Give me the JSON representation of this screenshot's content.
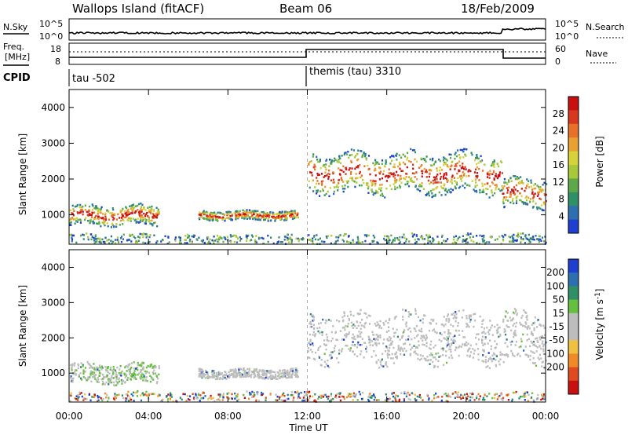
{
  "header": {
    "station": "Wallops Island (fitACF)",
    "beam": "Beam 06",
    "date": "18/Feb/2009"
  },
  "noise_panel": {
    "left_label": "N.Sky",
    "left_ticks": [
      "10^5",
      "10^0"
    ],
    "right_label": "N.Search",
    "right_ticks": [
      "10^5",
      "10^0"
    ]
  },
  "freq_panel": {
    "left_label_1": "Freq.",
    "left_label_2": "[MHz]",
    "left_ticks": [
      "18",
      "8"
    ],
    "right_label": "Nave",
    "right_ticks": [
      "60",
      "0"
    ]
  },
  "cpid": {
    "label": "CPID",
    "modes": [
      "tau -502",
      "themis (tau) 3310"
    ]
  },
  "colors": {
    "power_scale": [
      "#1f3fd0",
      "#2e6fb0",
      "#2f8f66",
      "#5fa84a",
      "#a8c83a",
      "#d8d23a",
      "#e8a030",
      "#e87028",
      "#d83820",
      "#c81010"
    ],
    "velocity_scale": [
      "#1f3fd0",
      "#2e6fb0",
      "#2f8f66",
      "#66c040",
      "#bdbdbd",
      "#bdbdbd",
      "#f0c040",
      "#f08a28",
      "#e04a20",
      "#c81010"
    ],
    "ground_scatter": "#bdbdbd"
  },
  "chart_data": [
    {
      "type": "heatmap",
      "title": "",
      "ylabel": "Slant Range [km]",
      "xlabel": "",
      "xlim": [
        "00:00",
        "24:00"
      ],
      "ylim": [
        180,
        4500
      ],
      "yticks": [
        1000,
        2000,
        3000,
        4000
      ],
      "colorbar": {
        "label": "Power [dB]",
        "range": [
          0,
          32
        ],
        "ticks": [
          4,
          8,
          12,
          16,
          20,
          24,
          28
        ]
      },
      "echo_regions": [
        {
          "t_start": 0.0,
          "t_end": 4.5,
          "range_low": 700,
          "range_high": 1250,
          "level": "strong"
        },
        {
          "t_start": 6.5,
          "t_end": 11.5,
          "range_low": 850,
          "range_high": 1100,
          "level": "moderate"
        },
        {
          "t_start": 12.0,
          "t_end": 21.8,
          "range_low": 1600,
          "range_high": 2700,
          "level": "strong"
        },
        {
          "t_start": 21.8,
          "t_end": 24.0,
          "range_low": 1200,
          "range_high": 2000,
          "level": "strong"
        },
        {
          "t_start": 0.0,
          "t_end": 24.0,
          "range_low": 180,
          "range_high": 450,
          "level": "near-range"
        }
      ]
    },
    {
      "type": "heatmap",
      "title": "",
      "ylabel": "Slant Range [km]",
      "xlabel": "Time UT",
      "xlim": [
        "00:00",
        "24:00"
      ],
      "ylim": [
        180,
        4500
      ],
      "yticks": [
        1000,
        2000,
        3000,
        4000
      ],
      "xticks": [
        "00:00",
        "04:00",
        "08:00",
        "12:00",
        "16:00",
        "20:00",
        "00:00"
      ],
      "colorbar": {
        "label": "Velocity [m s^-1]",
        "bins": [
          "200",
          "100",
          "50",
          "15",
          "-15",
          "-50",
          "-100",
          "-200"
        ]
      },
      "echo_regions": [
        {
          "t_start": 0.0,
          "t_end": 4.5,
          "range_low": 700,
          "range_high": 1250,
          "class": "ground + positive"
        },
        {
          "t_start": 6.5,
          "t_end": 11.5,
          "range_low": 850,
          "range_high": 1100,
          "class": "ground"
        },
        {
          "t_start": 12.0,
          "t_end": 24.0,
          "range_low": 1300,
          "range_high": 2700,
          "class": "ground scatter"
        },
        {
          "t_start": 0.0,
          "t_end": 24.0,
          "range_low": 180,
          "range_high": 450,
          "class": "near-range mixed"
        }
      ]
    }
  ],
  "footer": {
    "xlabel": "Time UT"
  }
}
